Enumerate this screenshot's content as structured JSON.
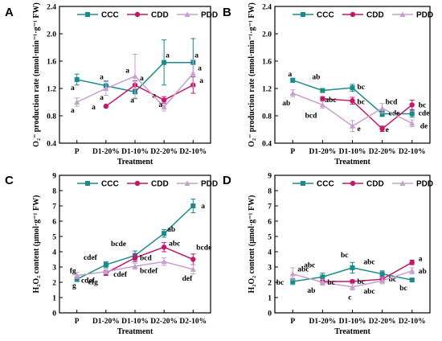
{
  "colors": {
    "CCC": "#1b8a8a",
    "CDD": "#c4176a",
    "PDD": "#c7a0cf"
  },
  "chart_data": [
    {
      "panel": "A",
      "type": "line",
      "categories": [
        "P",
        "D1-20%",
        "D1-10%",
        "D2-20%",
        "D2-10%"
      ],
      "xlabel": "Treatment",
      "ylabel": "O₂⁻ production rate (nmol·min⁻¹·g⁻¹ FW)",
      "ylim": [
        0.4,
        2.4
      ],
      "yticks": [
        "0.4",
        "0.8",
        "1.2",
        "1.6",
        "2.0",
        "2.4"
      ],
      "legend": "top",
      "series": [
        {
          "name": "CCC",
          "values": [
            1.33,
            1.24,
            1.15,
            1.58,
            1.58
          ],
          "errors": [
            0.08,
            0.07,
            0.1,
            0.33,
            0.35
          ],
          "labels": [
            "a",
            "a",
            "a",
            "a",
            "a"
          ]
        },
        {
          "name": "CDD",
          "values": [
            null,
            0.94,
            1.25,
            1.03,
            1.25
          ],
          "errors": [
            null,
            0.0,
            0.06,
            0.05,
            0.12
          ],
          "labels": [
            "",
            "a",
            "a",
            "a",
            "a"
          ]
        },
        {
          "name": "PDD",
          "values": [
            1.0,
            1.2,
            1.38,
            0.93,
            1.42
          ],
          "errors": [
            0.06,
            0.1,
            0.32,
            0.06,
            0.2
          ],
          "labels": [
            "a",
            "a",
            "a",
            "a",
            "a"
          ]
        }
      ]
    },
    {
      "panel": "B",
      "type": "line",
      "categories": [
        "P",
        "D1-20%",
        "D1-10%",
        "D2-20%",
        "D2-10%"
      ],
      "xlabel": "Treatment",
      "ylabel": "O₂⁻ production rate (nmol·min⁻¹·g⁻¹ FW)",
      "ylim": [
        0.4,
        2.4
      ],
      "yticks": [
        "0.4",
        "0.8",
        "1.2",
        "1.6",
        "2.0",
        "2.4"
      ],
      "legend": "top",
      "series": [
        {
          "name": "CCC",
          "values": [
            1.32,
            1.17,
            1.21,
            0.83,
            0.83
          ],
          "errors": [
            0.03,
            0.03,
            0.05,
            0.04,
            0.05
          ],
          "labels": [
            "a",
            "ab",
            "bc",
            "cde",
            "cde"
          ]
        },
        {
          "name": "CDD",
          "values": [
            null,
            1.05,
            1.02,
            0.61,
            0.96
          ],
          "errors": [
            null,
            0.03,
            0.05,
            0.04,
            0.07
          ],
          "labels": [
            "",
            "abc",
            "bc",
            "e",
            "bc"
          ]
        },
        {
          "name": "PDD",
          "values": [
            1.13,
            0.96,
            0.65,
            0.91,
            0.69
          ],
          "errors": [
            0.05,
            0.05,
            0.08,
            0.07,
            0.05
          ],
          "labels": [
            "ab",
            "bcd",
            "e",
            "bcd",
            "de"
          ]
        }
      ]
    },
    {
      "panel": "C",
      "type": "line",
      "categories": [
        "P",
        "D1-20%",
        "D1-10%",
        "D2-20%",
        "D2-10%"
      ],
      "xlabel": "Treatment",
      "ylabel": "H₂O₂ content (μmol·g⁻¹ FW)",
      "ylim": [
        0,
        9
      ],
      "yticks": [
        "0",
        "1",
        "2",
        "3",
        "4",
        "5",
        "6",
        "7",
        "8",
        "9"
      ],
      "legend": "top",
      "series": [
        {
          "name": "CCC",
          "values": [
            2.2,
            3.15,
            3.75,
            5.2,
            7.0
          ],
          "errors": [
            0.15,
            0.2,
            0.3,
            0.25,
            0.45
          ],
          "labels": [
            "g",
            "cdef",
            "bcde",
            "ab",
            "a"
          ]
        },
        {
          "name": "CDD",
          "values": [
            null,
            2.6,
            3.6,
            4.3,
            3.5
          ],
          "errors": [
            null,
            0.15,
            0.25,
            0.3,
            0.35
          ],
          "labels": [
            "",
            "efg",
            "bcd",
            "abc",
            "bcde"
          ]
        },
        {
          "name": "PDD",
          "values": [
            2.45,
            2.7,
            3.05,
            3.35,
            2.85
          ],
          "errors": [
            0.2,
            0.15,
            0.2,
            0.25,
            0.3
          ],
          "labels": [
            "fg",
            "cdef",
            "cdef",
            "bcdef",
            "def"
          ]
        }
      ]
    },
    {
      "panel": "D",
      "type": "line",
      "categories": [
        "P",
        "D1-20%",
        "D1-10%",
        "D2-20%",
        "D2-10%"
      ],
      "xlabel": "Treatment",
      "ylabel": "H₂O₂ content (μmol·g⁻¹ FW)",
      "ylim": [
        0,
        9
      ],
      "yticks": [
        "0",
        "1",
        "2",
        "3",
        "4",
        "5",
        "6",
        "7",
        "8",
        "9"
      ],
      "legend": "top",
      "series": [
        {
          "name": "CCC",
          "values": [
            2.05,
            2.35,
            2.95,
            2.55,
            2.15
          ],
          "errors": [
            0.2,
            0.25,
            0.35,
            0.2,
            0.1
          ],
          "labels": [
            "bc",
            "abc",
            "bc",
            "abc",
            "bc"
          ]
        },
        {
          "name": "CDD",
          "values": [
            null,
            2.05,
            2.05,
            2.2,
            3.3
          ],
          "errors": [
            null,
            0.15,
            0.1,
            0.15,
            0.15
          ],
          "labels": [
            "",
            "ab",
            "bc",
            "bc",
            "a"
          ]
        },
        {
          "name": "PDD",
          "values": [
            2.55,
            2.0,
            1.7,
            2.1,
            2.75
          ],
          "errors": [
            0.4,
            0.2,
            0.2,
            0.2,
            0.2
          ],
          "labels": [
            "abc",
            "bc",
            "c",
            "abc",
            "ab"
          ]
        }
      ]
    }
  ]
}
